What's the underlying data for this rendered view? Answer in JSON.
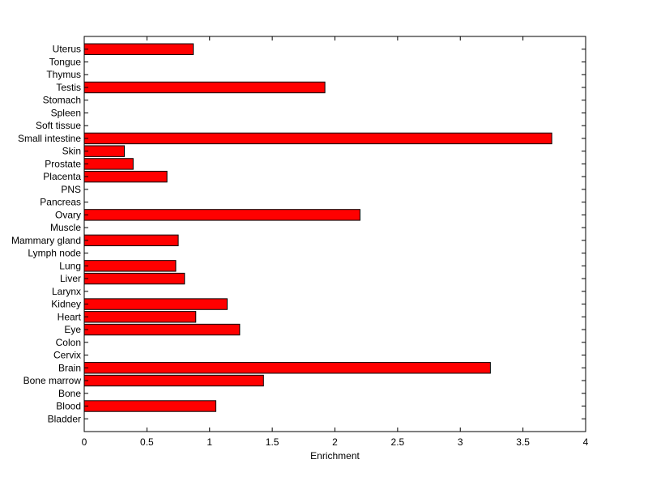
{
  "chart_data": {
    "type": "bar",
    "orientation": "horizontal",
    "title": "",
    "xlabel": "Enrichment",
    "ylabel": "",
    "xlim": [
      0,
      4
    ],
    "xticks": [
      0,
      0.5,
      1,
      1.5,
      2,
      2.5,
      3,
      3.5,
      4
    ],
    "xtick_labels": [
      "0",
      "0.5",
      "1",
      "1.5",
      "2",
      "2.5",
      "3",
      "3.5",
      "4"
    ],
    "grid": false,
    "legend": "none",
    "bar_color": "#ff0000",
    "categories": [
      "Bladder",
      "Blood",
      "Bone",
      "Bone marrow",
      "Brain",
      "Cervix",
      "Colon",
      "Eye",
      "Heart",
      "Kidney",
      "Larynx",
      "Liver",
      "Lung",
      "Lymph node",
      "Mammary gland",
      "Muscle",
      "Ovary",
      "Pancreas",
      "PNS",
      "Placenta",
      "Prostate",
      "Skin",
      "Small intestine",
      "Soft tissue",
      "Spleen",
      "Stomach",
      "Testis",
      "Thymus",
      "Tongue",
      "Uterus"
    ],
    "values": [
      0,
      1.05,
      0,
      1.43,
      3.24,
      0,
      0,
      1.24,
      0.89,
      1.14,
      0,
      0.8,
      0.73,
      0,
      0.75,
      0,
      2.2,
      0,
      0,
      0.66,
      0.39,
      0.32,
      3.73,
      0,
      0,
      0,
      1.92,
      0,
      0,
      0.87
    ]
  }
}
